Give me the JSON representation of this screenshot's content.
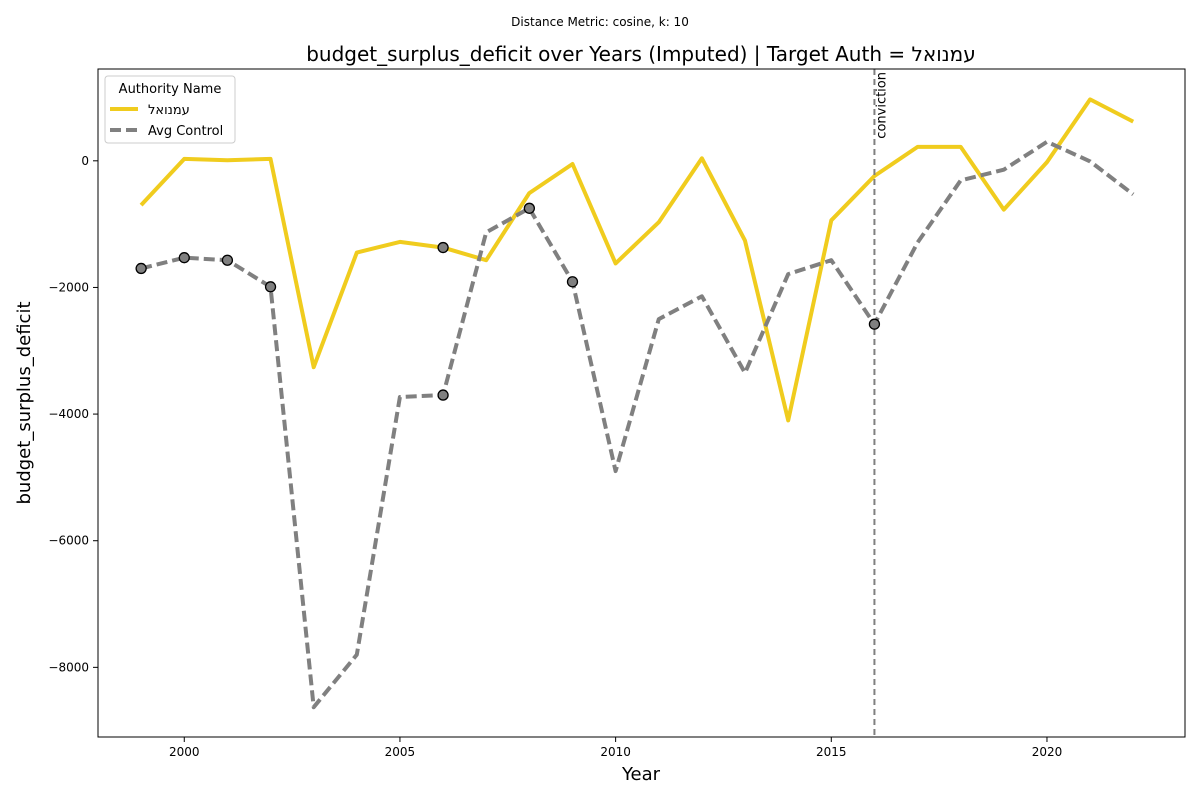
{
  "chart_data": {
    "type": "line",
    "suptitle": "Distance Metric: cosine, k: 10",
    "title": "budget_surplus_deficit over Years (Imputed) | Target Auth = עמנואל",
    "xlabel": "Year",
    "ylabel": "budget_surplus_deficit",
    "xlim": [
      1998,
      2023.2
    ],
    "ylim": [
      -9100,
      1450
    ],
    "xticks": [
      2000,
      2005,
      2010,
      2015,
      2020
    ],
    "yticks": [
      0,
      -2000,
      -4000,
      -6000,
      -8000
    ],
    "ytick_labels": [
      "0",
      "−2000",
      "−4000",
      "−6000",
      "−8000"
    ],
    "grid": false,
    "legend": {
      "title": "Authority Name",
      "placement": "top-left"
    },
    "x": [
      1999,
      2000,
      2001,
      2002,
      2003,
      2004,
      2005,
      2006,
      2007,
      2008,
      2009,
      2010,
      2011,
      2012,
      2013,
      2014,
      2015,
      2016,
      2017,
      2018,
      2019,
      2020,
      2021,
      2022
    ],
    "series": [
      {
        "name": "עמנואל",
        "color": "#f0cc1e",
        "style": "solid",
        "values": [
          -700,
          30,
          10,
          30,
          -3260,
          -1450,
          -1280,
          -1370,
          -1570,
          -510,
          -50,
          -1620,
          -970,
          40,
          -1260,
          -4100,
          -940,
          -240,
          220,
          220,
          -770,
          -20,
          970,
          620
        ],
        "imputed_markers": [
          {
            "x": 2006,
            "y": -1370
          }
        ]
      },
      {
        "name": "Avg Control",
        "color": "#808080",
        "style": "dashed",
        "values": [
          -1700,
          -1530,
          -1570,
          -1990,
          -8630,
          -7800,
          -3730,
          -3700,
          -1130,
          -750,
          -1910,
          -4900,
          -2500,
          -2140,
          -3350,
          -1790,
          -1570,
          -2580,
          -1290,
          -310,
          -140,
          300,
          -10,
          -530
        ],
        "imputed_markers": [
          {
            "x": 1999,
            "y": -1700
          },
          {
            "x": 2000,
            "y": -1530
          },
          {
            "x": 2001,
            "y": -1570
          },
          {
            "x": 2002,
            "y": -1990
          },
          {
            "x": 2006,
            "y": -3700
          },
          {
            "x": 2008,
            "y": -750
          },
          {
            "x": 2009,
            "y": -1910
          },
          {
            "x": 2016,
            "y": -2580
          }
        ]
      }
    ],
    "annotations": [
      {
        "type": "vline",
        "x": 2016,
        "label": "conviction",
        "color": "#808080"
      }
    ]
  }
}
